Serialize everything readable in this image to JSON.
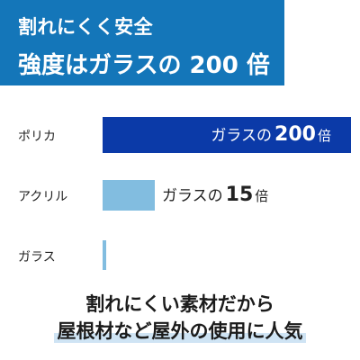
{
  "header": {
    "line1": "割れにくく安全",
    "line2": "強度はガラスの 200 倍",
    "bg_color": "#1476b9"
  },
  "chart_data": {
    "type": "bar",
    "orientation": "horizontal",
    "categories": [
      "ポリカ",
      "アクリル",
      "ガラス"
    ],
    "values": [
      200,
      15,
      1
    ],
    "bar_colors": [
      "#0b3aa8",
      "#82bde0",
      "#82bde0"
    ],
    "labels": [
      {
        "prefix": "ガラスの",
        "num": "200",
        "unit": "倍"
      },
      {
        "prefix": "ガラスの",
        "num": "15",
        "unit": "倍"
      },
      {
        "prefix": "",
        "num": "",
        "unit": ""
      }
    ]
  },
  "footer": {
    "line1": "割れにくい素材だから",
    "line2": "屋根材など屋外の使用に人気",
    "highlight_color": "#cfe4f4"
  }
}
